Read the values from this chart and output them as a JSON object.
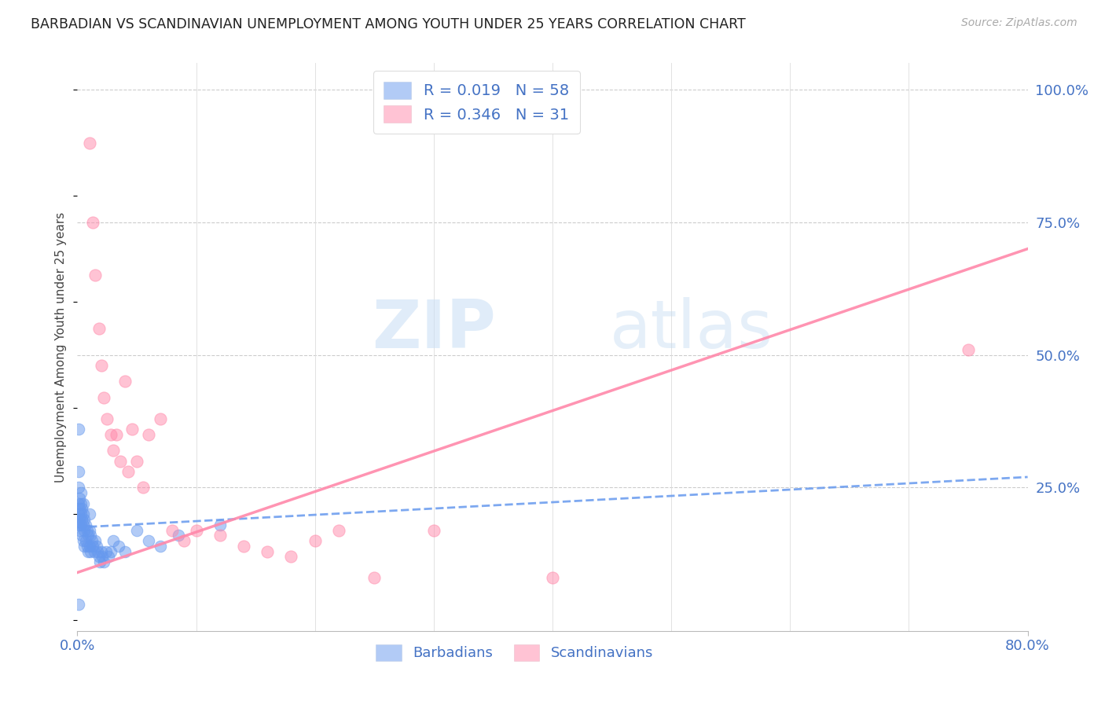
{
  "title": "BARBADIAN VS SCANDINAVIAN UNEMPLOYMENT AMONG YOUTH UNDER 25 YEARS CORRELATION CHART",
  "source": "Source: ZipAtlas.com",
  "ylabel": "Unemployment Among Youth under 25 years",
  "label_color": "#4472c4",
  "xlim": [
    0.0,
    0.8
  ],
  "ylim": [
    -0.02,
    1.05
  ],
  "yticks_right": [
    0.0,
    0.25,
    0.5,
    0.75,
    1.0
  ],
  "ytick_labels_right": [
    "",
    "25.0%",
    "50.0%",
    "75.0%",
    "100.0%"
  ],
  "barbadians_R": 0.019,
  "barbadians_N": 58,
  "scandinavians_R": 0.346,
  "scandinavians_N": 31,
  "barbadian_color": "#6699ee",
  "scandinavian_color": "#ff88aa",
  "legend_barbadians": "Barbadians",
  "legend_scandinavians": "Scandinavians",
  "barb_x": [
    0.001,
    0.001,
    0.001,
    0.001,
    0.001,
    0.002,
    0.002,
    0.002,
    0.002,
    0.003,
    0.003,
    0.003,
    0.003,
    0.004,
    0.004,
    0.004,
    0.005,
    0.005,
    0.005,
    0.005,
    0.006,
    0.006,
    0.006,
    0.007,
    0.007,
    0.008,
    0.008,
    0.009,
    0.009,
    0.01,
    0.01,
    0.01,
    0.011,
    0.011,
    0.012,
    0.013,
    0.014,
    0.015,
    0.016,
    0.017,
    0.018,
    0.019,
    0.02,
    0.021,
    0.022,
    0.024,
    0.026,
    0.028,
    0.03,
    0.035,
    0.04,
    0.05,
    0.06,
    0.07,
    0.085,
    0.12,
    0.001,
    0.001
  ],
  "barb_y": [
    0.22,
    0.28,
    0.25,
    0.2,
    0.18,
    0.23,
    0.21,
    0.19,
    0.17,
    0.24,
    0.22,
    0.2,
    0.18,
    0.21,
    0.19,
    0.16,
    0.22,
    0.2,
    0.18,
    0.15,
    0.19,
    0.17,
    0.14,
    0.18,
    0.15,
    0.17,
    0.14,
    0.16,
    0.13,
    0.2,
    0.17,
    0.14,
    0.16,
    0.13,
    0.15,
    0.14,
    0.13,
    0.15,
    0.14,
    0.13,
    0.12,
    0.11,
    0.13,
    0.12,
    0.11,
    0.13,
    0.12,
    0.13,
    0.15,
    0.14,
    0.13,
    0.17,
    0.15,
    0.14,
    0.16,
    0.18,
    0.36,
    0.03
  ],
  "scand_x": [
    0.01,
    0.013,
    0.015,
    0.018,
    0.02,
    0.022,
    0.025,
    0.028,
    0.03,
    0.033,
    0.036,
    0.04,
    0.043,
    0.046,
    0.05,
    0.055,
    0.06,
    0.07,
    0.08,
    0.09,
    0.1,
    0.12,
    0.14,
    0.16,
    0.18,
    0.2,
    0.22,
    0.25,
    0.3,
    0.4,
    0.75
  ],
  "scand_y": [
    0.9,
    0.75,
    0.65,
    0.55,
    0.48,
    0.42,
    0.38,
    0.35,
    0.32,
    0.35,
    0.3,
    0.45,
    0.28,
    0.36,
    0.3,
    0.25,
    0.35,
    0.38,
    0.17,
    0.15,
    0.17,
    0.16,
    0.14,
    0.13,
    0.12,
    0.15,
    0.17,
    0.08,
    0.17,
    0.08,
    0.51
  ]
}
